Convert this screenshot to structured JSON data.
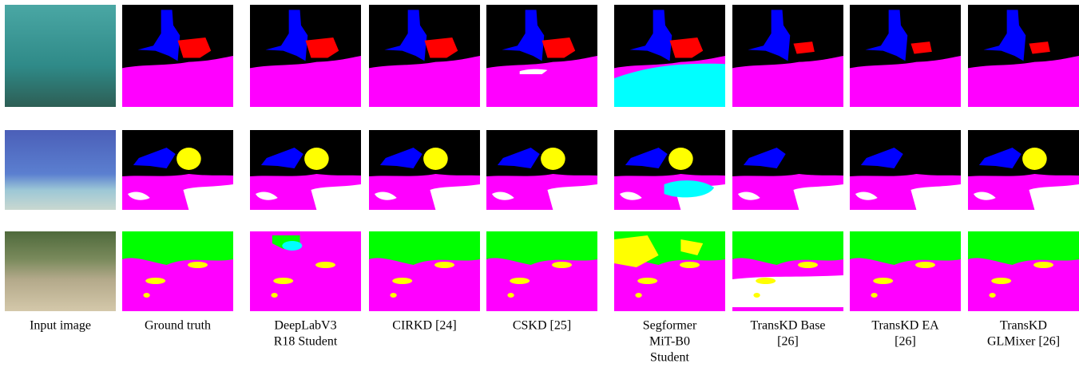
{
  "columns": [
    {
      "label": [
        "Input image"
      ]
    },
    {
      "label": [
        "Ground truth"
      ]
    },
    {
      "label": [
        "DeepLabV3",
        "R18 Student"
      ]
    },
    {
      "label": [
        "CIRKD [24]"
      ]
    },
    {
      "label": [
        "CSKD [25]"
      ]
    },
    {
      "label": [
        "Segformer",
        "MiT-B0",
        "Student"
      ]
    },
    {
      "label": [
        "TransKD Base",
        "[26]"
      ]
    },
    {
      "label": [
        "TransKD EA",
        "[26]"
      ]
    },
    {
      "label": [
        "TransKD",
        "GLMixer [26]"
      ]
    }
  ]
}
